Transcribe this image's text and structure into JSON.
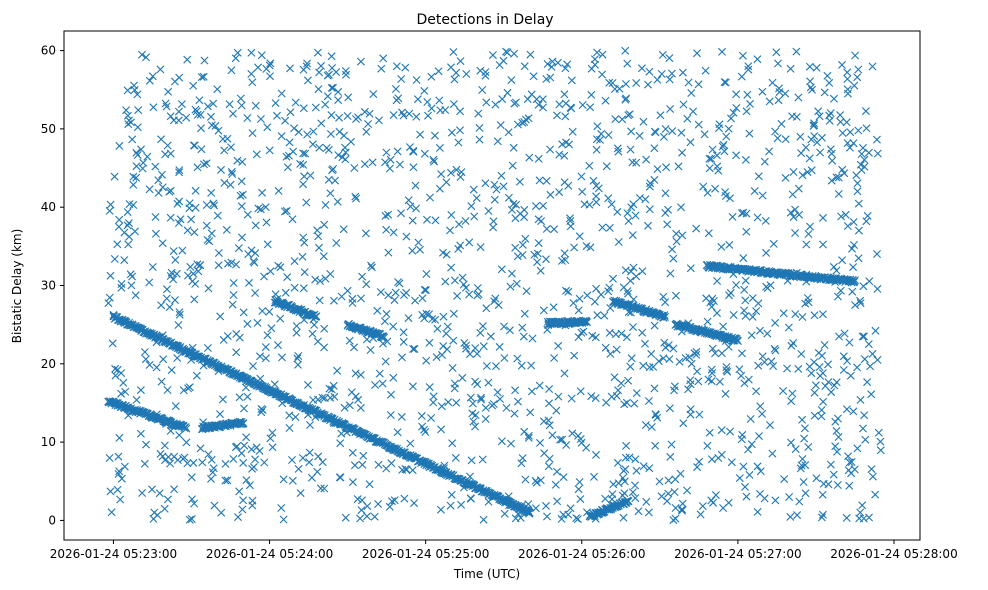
{
  "chart_data": {
    "type": "scatter",
    "title": "Detections in Delay",
    "xlabel": "Time (UTC)",
    "ylabel": "Bistatic Delay (km)",
    "x_ticks": [
      "2026-01-24 05:23:00",
      "2026-01-24 05:24:00",
      "2026-01-24 05:25:00",
      "2026-01-24 05:26:00",
      "2026-01-24 05:27:00",
      "2026-01-24 05:28:00"
    ],
    "y_ticks": [
      "0",
      "10",
      "20",
      "30",
      "40",
      "50",
      "60"
    ],
    "xlim": [
      "2026-01-24 05:22:41",
      "2026-01-24 05:28:10"
    ],
    "ylim": [
      -2.5,
      62.5
    ],
    "marker": "x",
    "color": "#1f77b4",
    "grid": false,
    "tracks": [
      {
        "t_start": "2026-01-24 05:22:58",
        "t_end": "2026-01-24 05:23:28",
        "delay_start": 15.2,
        "delay_end": 11.8
      },
      {
        "t_start": "2026-01-24 05:23:34",
        "t_end": "2026-01-24 05:23:50",
        "delay_start": 11.8,
        "delay_end": 12.5
      },
      {
        "t_start": "2026-01-24 05:23:00",
        "t_end": "2026-01-24 05:25:40",
        "delay_start": 26.0,
        "delay_end": 1.0
      },
      {
        "t_start": "2026-01-24 05:24:02",
        "t_end": "2026-01-24 05:24:18",
        "delay_start": 28.0,
        "delay_end": 26.0
      },
      {
        "t_start": "2026-01-24 05:24:30",
        "t_end": "2026-01-24 05:24:44",
        "delay_start": 25.0,
        "delay_end": 23.5
      },
      {
        "t_start": "2026-01-24 05:25:47",
        "t_end": "2026-01-24 05:26:02",
        "delay_start": 25.2,
        "delay_end": 25.4
      },
      {
        "t_start": "2026-01-24 05:26:03",
        "t_end": "2026-01-24 05:26:18",
        "delay_start": 0.5,
        "delay_end": 2.5
      },
      {
        "t_start": "2026-01-24 05:26:12",
        "t_end": "2026-01-24 05:26:32",
        "delay_start": 28.0,
        "delay_end": 26.0
      },
      {
        "t_start": "2026-01-24 05:26:36",
        "t_end": "2026-01-24 05:27:00",
        "delay_start": 25.0,
        "delay_end": 23.0
      },
      {
        "t_start": "2026-01-24 05:26:48",
        "t_end": "2026-01-24 05:27:45",
        "delay_start": 32.5,
        "delay_end": 30.5
      }
    ],
    "clutter": {
      "t_start": "2026-01-24 05:22:58",
      "t_end": "2026-01-24 05:27:55",
      "delay_min": 0,
      "delay_max": 60,
      "count": 1700
    }
  }
}
